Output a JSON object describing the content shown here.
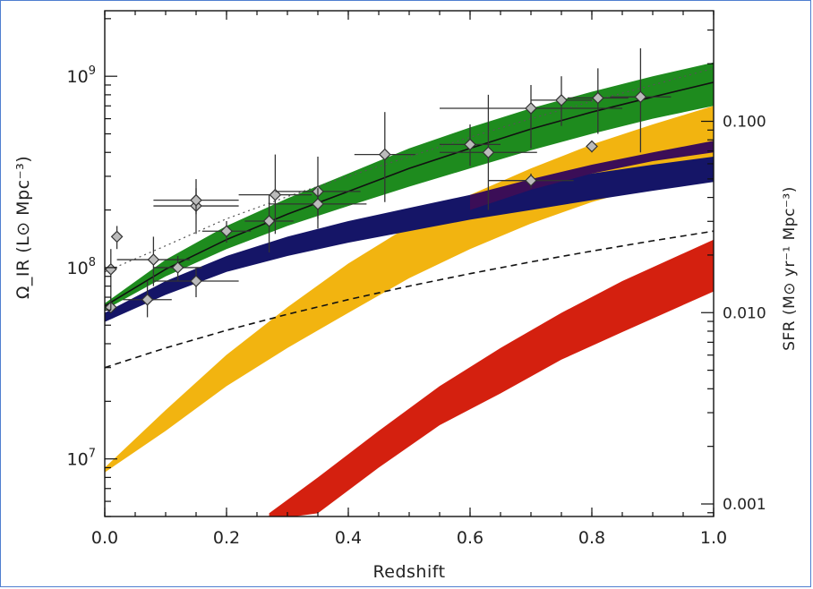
{
  "chart_data": {
    "type": "line",
    "xlabel": "Redshift",
    "ylabel": "Ω_IR (L⊙ Mpc⁻³)",
    "ylabel_right": "SFR (M⊙ yr⁻¹ Mpc⁻³)",
    "xlim": [
      0.0,
      1.0
    ],
    "ylim": [
      5000000,
      2200000000
    ],
    "y_scale": "log",
    "right_axis_scale": "log",
    "grid": false,
    "x_ticks": [
      {
        "value": 0.0,
        "label": "0.0"
      },
      {
        "value": 0.2,
        "label": "0.2"
      },
      {
        "value": 0.4,
        "label": "0.4"
      },
      {
        "value": 0.6,
        "label": "0.6"
      },
      {
        "value": 0.8,
        "label": "0.8"
      },
      {
        "value": 1.0,
        "label": "1.0"
      }
    ],
    "y_ticks": [
      {
        "value": 10000000,
        "base": "10",
        "exp": "7"
      },
      {
        "value": 100000000,
        "base": "10",
        "exp": "8"
      },
      {
        "value": 1000000000,
        "base": "10",
        "exp": "9"
      }
    ],
    "right_ticks": [
      {
        "value": 0.001,
        "label": "0.001"
      },
      {
        "value": 0.01,
        "label": "0.010"
      },
      {
        "value": 0.1,
        "label": "0.100"
      }
    ],
    "right_axis_equivalence": {
      "sfr_at_1e9": 0.172
    },
    "bands": [
      {
        "color": "#d4200f",
        "x": [
          0.27,
          0.35,
          0.45,
          0.55,
          0.65,
          0.75,
          0.85,
          1.0
        ],
        "upper": [
          5200000,
          8000000,
          14000000,
          24000000,
          38000000,
          58000000,
          85000000,
          140000000
        ],
        "lower": [
          4800000,
          5200000,
          9000000,
          15000000,
          22000000,
          33000000,
          46000000,
          75000000
        ]
      },
      {
        "color": "#f2b410",
        "x": [
          0.0,
          0.1,
          0.2,
          0.3,
          0.4,
          0.5,
          0.6,
          0.7,
          0.8,
          0.9,
          1.0
        ],
        "upper": [
          9000000,
          18000000,
          35000000,
          62000000,
          105000000,
          165000000,
          240000000,
          330000000,
          440000000,
          560000000,
          700000000
        ],
        "lower": [
          8500000,
          14000000,
          24000000,
          38000000,
          58000000,
          88000000,
          125000000,
          170000000,
          220000000,
          270000000,
          320000000
        ]
      },
      {
        "color": "#151567",
        "x": [
          0.0,
          0.1,
          0.2,
          0.3,
          0.4,
          0.5,
          0.6,
          0.7,
          0.8,
          0.9,
          1.0
        ],
        "upper": [
          58000000,
          85000000,
          115000000,
          145000000,
          175000000,
          205000000,
          240000000,
          275000000,
          310000000,
          345000000,
          380000000
        ],
        "lower": [
          52000000,
          72000000,
          95000000,
          115000000,
          135000000,
          155000000,
          178000000,
          200000000,
          225000000,
          252000000,
          280000000
        ]
      },
      {
        "color": "#3b0e57",
        "x": [
          0.6,
          0.7,
          0.8,
          0.9,
          1.0
        ],
        "upper": [
          240000000,
          290000000,
          345000000,
          400000000,
          460000000
        ],
        "lower": [
          200000000,
          255000000,
          310000000,
          360000000,
          400000000
        ]
      },
      {
        "color": "#1e8b1e",
        "x": [
          0.0,
          0.1,
          0.2,
          0.3,
          0.4,
          0.5,
          0.6,
          0.7,
          0.8,
          0.9,
          1.0
        ],
        "upper": [
          65000000,
          110000000,
          165000000,
          230000000,
          310000000,
          420000000,
          540000000,
          680000000,
          830000000,
          1000000000,
          1180000000
        ],
        "lower": [
          60000000,
          90000000,
          125000000,
          165000000,
          210000000,
          265000000,
          330000000,
          410000000,
          500000000,
          600000000,
          700000000
        ]
      }
    ],
    "lines": [
      {
        "style": "solid",
        "x": [
          0.0,
          0.1,
          0.2,
          0.3,
          0.4,
          0.5,
          0.6,
          0.7,
          0.8,
          0.9,
          1.0
        ],
        "y": [
          63000000,
          98000000,
          140000000,
          190000000,
          250000000,
          330000000,
          420000000,
          530000000,
          650000000,
          780000000,
          930000000
        ]
      },
      {
        "style": "dotted",
        "x": [
          0.0,
          0.1,
          0.2,
          0.3,
          0.4,
          0.5,
          0.6,
          0.7,
          0.8,
          0.9,
          1.0
        ],
        "y": [
          95000000,
          130000000,
          180000000,
          235000000,
          300000000,
          380000000,
          480000000,
          600000000,
          740000000,
          900000000,
          1100000000
        ]
      },
      {
        "style": "dashed",
        "x": [
          0.0,
          0.1,
          0.2,
          0.3,
          0.4,
          0.5,
          0.6,
          0.7,
          0.8,
          0.9,
          1.0
        ],
        "y": [
          30000000,
          38000000,
          47000000,
          57000000,
          68000000,
          80000000,
          93000000,
          107000000,
          122000000,
          138000000,
          155000000
        ]
      }
    ],
    "points": [
      {
        "x": 0.01,
        "y": 62000000,
        "xerr": 0.0,
        "yerr": [
          60000000,
          70000000
        ]
      },
      {
        "x": 0.01,
        "y": 98000000,
        "xerr": 0.0,
        "yerr": [
          60000000,
          125000000
        ]
      },
      {
        "x": 0.02,
        "y": 145000000,
        "xerr": 0.0,
        "yerr": [
          125000000,
          165000000
        ]
      },
      {
        "x": 0.07,
        "y": 68000000,
        "xerr": 0.04,
        "yerr": [
          55000000,
          85000000
        ]
      },
      {
        "x": 0.08,
        "y": 110000000,
        "xerr": 0.06,
        "yerr": [
          80000000,
          145000000
        ]
      },
      {
        "x": 0.12,
        "y": 100000000,
        "xerr": 0.04,
        "yerr": [
          85000000,
          115000000
        ]
      },
      {
        "x": 0.15,
        "y": 85000000,
        "xerr": 0.07,
        "yerr": [
          70000000,
          100000000
        ]
      },
      {
        "x": 0.15,
        "y": 210000000,
        "xerr": 0.07,
        "yerr": [
          150000000,
          290000000
        ]
      },
      {
        "x": 0.15,
        "y": 225000000,
        "xerr": 0.07,
        "yerr": [
          190000000,
          260000000
        ]
      },
      {
        "x": 0.2,
        "y": 155000000,
        "xerr": 0.04,
        "yerr": [
          135000000,
          175000000
        ]
      },
      {
        "x": 0.27,
        "y": 175000000,
        "xerr": 0.04,
        "yerr": [
          120000000,
          240000000
        ]
      },
      {
        "x": 0.28,
        "y": 240000000,
        "xerr": 0.06,
        "yerr": [
          150000000,
          390000000
        ]
      },
      {
        "x": 0.35,
        "y": 250000000,
        "xerr": 0.07,
        "yerr": [
          160000000,
          380000000
        ]
      },
      {
        "x": 0.35,
        "y": 215000000,
        "xerr": 0.08,
        "yerr": [
          180000000,
          260000000
        ]
      },
      {
        "x": 0.46,
        "y": 390000000,
        "xerr": 0.05,
        "yerr": [
          220000000,
          650000000
        ]
      },
      {
        "x": 0.6,
        "y": 440000000,
        "xerr": 0.05,
        "yerr": [
          340000000,
          560000000
        ]
      },
      {
        "x": 0.63,
        "y": 400000000,
        "xerr": 0.08,
        "yerr": [
          200000000,
          800000000
        ]
      },
      {
        "x": 0.7,
        "y": 680000000,
        "xerr": 0.15,
        "yerr": [
          420000000,
          900000000
        ]
      },
      {
        "x": 0.7,
        "y": 285000000,
        "xerr": 0.07,
        "yerr": [
          260000000,
          310000000
        ]
      },
      {
        "x": 0.75,
        "y": 750000000,
        "xerr": 0.05,
        "yerr": [
          550000000,
          1000000000
        ]
      },
      {
        "x": 0.8,
        "y": 430000000,
        "xerr": 0.0,
        "yerr": [
          400000000,
          460000000
        ]
      },
      {
        "x": 0.81,
        "y": 770000000,
        "xerr": 0.05,
        "yerr": [
          500000000,
          1100000000
        ]
      },
      {
        "x": 0.88,
        "y": 780000000,
        "xerr": 0.05,
        "yerr": [
          400000000,
          1400000000
        ]
      }
    ]
  }
}
